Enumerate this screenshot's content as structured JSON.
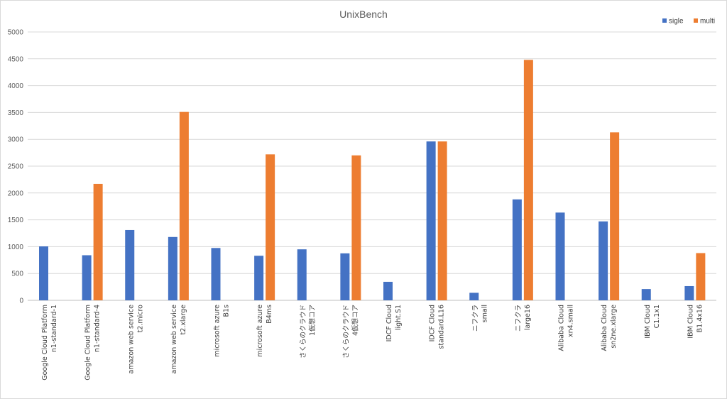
{
  "chart_data": {
    "type": "bar",
    "title": "UnixBench",
    "xlabel": "",
    "ylabel": "",
    "ylim": [
      0,
      5000
    ],
    "yticks": [
      0,
      500,
      1000,
      1500,
      2000,
      2500,
      3000,
      3500,
      4000,
      4500,
      5000
    ],
    "grid": true,
    "legend_position": "top-right",
    "categories": [
      [
        "Google Cloud Platform",
        "n1-standard-1"
      ],
      [
        "Google Cloud Platform",
        "n1-standard-4"
      ],
      [
        "amazon web service",
        "t2.micro"
      ],
      [
        "amazon web service",
        "t2.xlarge"
      ],
      [
        "microsoft azure",
        "B1s"
      ],
      [
        "microsoft azure",
        "B4ms"
      ],
      [
        "さくらのクラウド",
        "1仮想コア"
      ],
      [
        "さくらのクラウド",
        "4仮想コア"
      ],
      [
        "IDCF Cloud",
        "light.S1"
      ],
      [
        "IDCF Cloud",
        "standard.L16"
      ],
      [
        "ニフクラ",
        "small"
      ],
      [
        "ニフクラ",
        "large16"
      ],
      [
        "Alibaba Cloud",
        "xn4.small"
      ],
      [
        "Alibaba Cloud",
        "sn2ne.xlarge"
      ],
      [
        "IBM Cloud",
        "C1.1x1"
      ],
      [
        "IBM Cloud",
        "B1.4x16"
      ]
    ],
    "series": [
      {
        "name": "sigle",
        "color": "#4472c4",
        "values": [
          1005,
          840,
          1310,
          1180,
          975,
          830,
          950,
          875,
          345,
          2960,
          140,
          1880,
          1635,
          1470,
          210,
          265
        ]
      },
      {
        "name": "multi",
        "color": "#ed7d31",
        "values": [
          null,
          2170,
          null,
          3510,
          null,
          2720,
          null,
          2700,
          null,
          2960,
          null,
          4480,
          null,
          3130,
          null,
          880
        ]
      }
    ]
  }
}
